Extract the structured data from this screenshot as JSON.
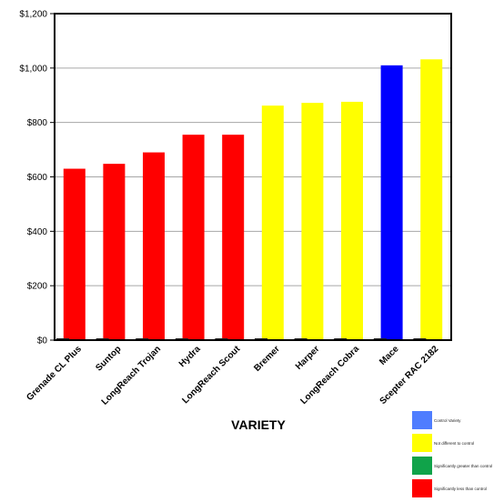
{
  "chart_data": {
    "type": "bar",
    "xlabel": "VARIETY",
    "ylabel": "",
    "ylim": [
      0,
      1200
    ],
    "ytick_labels": [
      "$0",
      "$200",
      "$400",
      "$600",
      "$800",
      "$1,000",
      "$1,200"
    ],
    "grid": true,
    "categories": [
      "Grenade CL Plus",
      "Suntop",
      "LongReach Trojan",
      "Hydra",
      "LongReach Scout",
      "Bremer",
      "Harper",
      "LongReach Cobra",
      "Mace",
      "Scepter RAC 2182"
    ],
    "values": [
      630,
      648,
      690,
      755,
      755,
      862,
      872,
      876,
      1010,
      1032
    ],
    "bar_colors": [
      "#ff0000",
      "#ff0000",
      "#ff0000",
      "#ff0000",
      "#ff0000",
      "#ffff00",
      "#ffff00",
      "#ffff00",
      "#0000ff",
      "#ffff00"
    ],
    "legend": {
      "placement": "bottom-right",
      "entries": [
        {
          "label": "Control Variety",
          "color": "#4f7dff"
        },
        {
          "label": "Not different to control",
          "color": "#ffff00"
        },
        {
          "label": "Significantly greater than control",
          "color": "#10a34a"
        },
        {
          "label": "Significantly less than control",
          "color": "#ff0000"
        }
      ]
    }
  }
}
